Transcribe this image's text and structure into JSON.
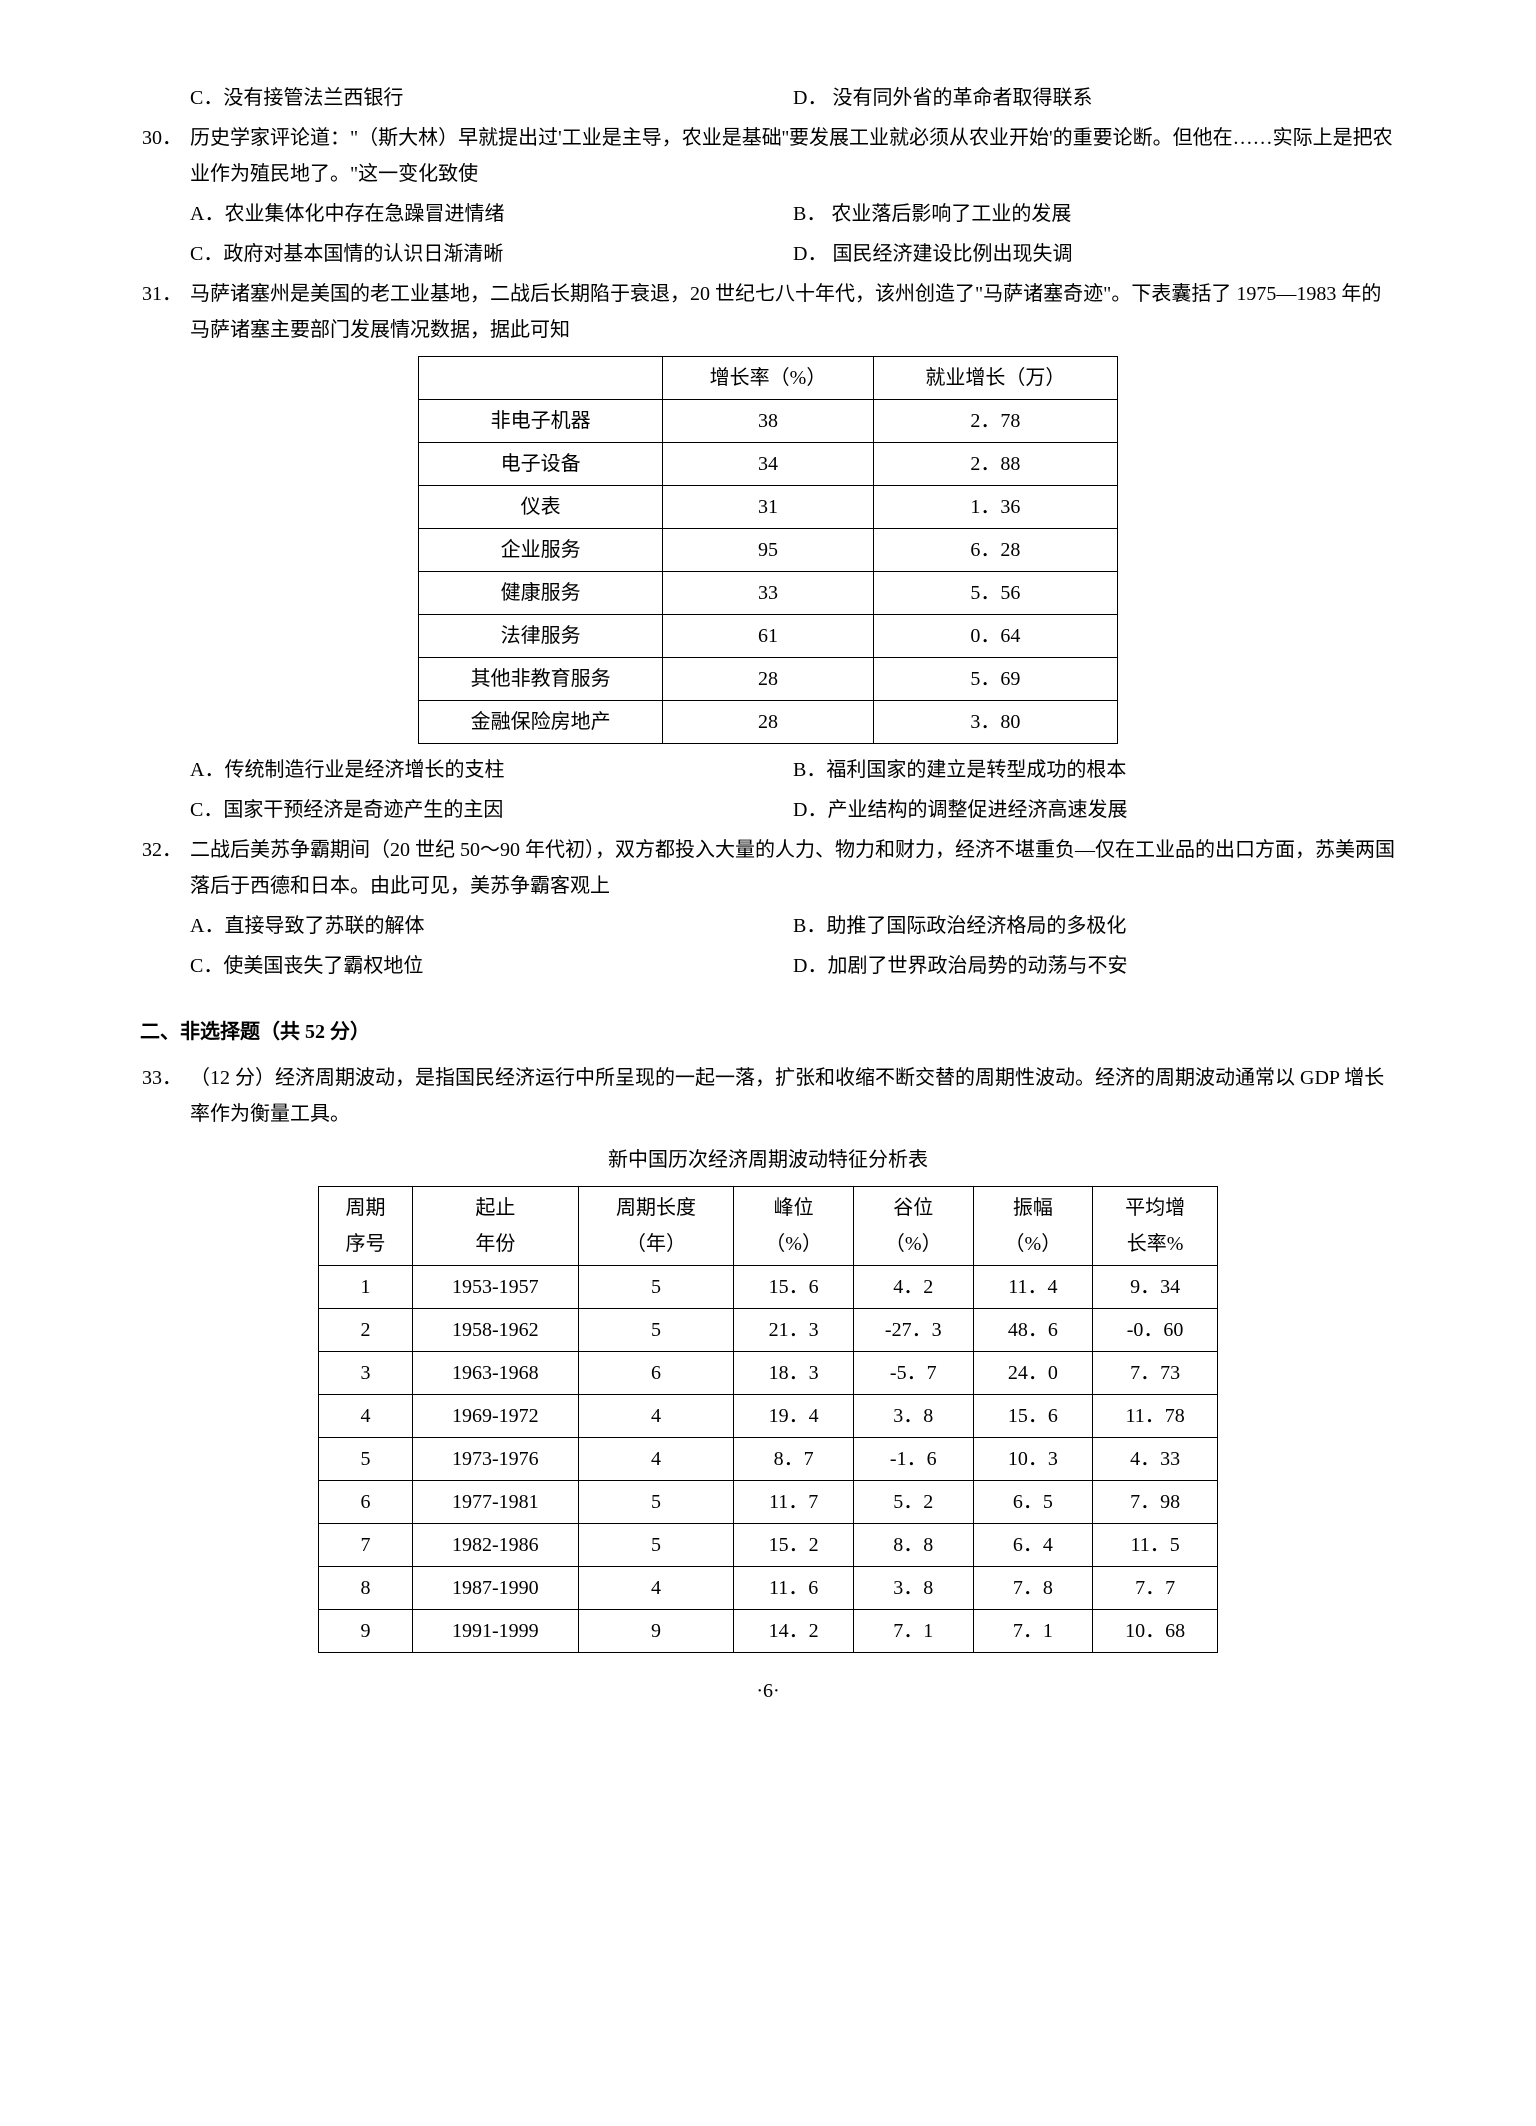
{
  "q29": {
    "optC": "C．没有接管法兰西银行",
    "optD": "D． 没有同外省的革命者取得联系"
  },
  "q30": {
    "num": "30．",
    "text": "历史学家评论道：\"（斯大林）早就提出过'工业是主导，农业是基础''要发展工业就必须从农业开始'的重要论断。但他在……实际上是把农业作为殖民地了。\"这一变化致使",
    "optA": "A．农业集体化中存在急躁冒进情绪",
    "optB": "B． 农业落后影响了工业的发展",
    "optC": "C．政府对基本国情的认识日渐清晰",
    "optD": "D． 国民经济建设比例出现失调"
  },
  "q31": {
    "num": "31．",
    "text": "马萨诸塞州是美国的老工业基地，二战后长期陷于衰退，20 世纪七八十年代，该州创造了\"马萨诸塞奇迹\"。下表囊括了 1975—1983 年的马萨诸塞主要部门发展情况数据，据此可知",
    "table": {
      "headers": [
        "",
        "增长率（%）",
        "就业增长（万）"
      ],
      "rows": [
        [
          "非电子机器",
          "38",
          "2．78"
        ],
        [
          "电子设备",
          "34",
          "2．88"
        ],
        [
          "仪表",
          "31",
          "1．36"
        ],
        [
          "企业服务",
          "95",
          "6．28"
        ],
        [
          "健康服务",
          "33",
          "5．56"
        ],
        [
          "法律服务",
          "61",
          "0．64"
        ],
        [
          "其他非教育服务",
          "28",
          "5．69"
        ],
        [
          "金融保险房地产",
          "28",
          "3．80"
        ]
      ]
    },
    "optA": "A．传统制造行业是经济增长的支柱",
    "optB": "B．福利国家的建立是转型成功的根本",
    "optC": "C．国家干预经济是奇迹产生的主因",
    "optD": "D．产业结构的调整促进经济高速发展"
  },
  "q32": {
    "num": "32．",
    "text": "二战后美苏争霸期间（20 世纪 50～90 年代初），双方都投入大量的人力、物力和财力，经济不堪重负—仅在工业品的出口方面，苏美两国落后于西德和日本。由此可见，美苏争霸客观上",
    "optA": "A．直接导致了苏联的解体",
    "optB": "B．助推了国际政治经济格局的多极化",
    "optC": "C．使美国丧失了霸权地位",
    "optD": "D．加剧了世界政治局势的动荡与不安"
  },
  "section2": {
    "header": "二、非选择题（共 52 分）"
  },
  "q33": {
    "num": "33．",
    "text": "（12 分）经济周期波动，是指国民经济运行中所呈现的一起一落，扩张和收缩不断交替的周期性波动。经济的周期波动通常以 GDP 增长率作为衡量工具。",
    "tableTitle": "新中国历次经济周期波动特征分析表",
    "table": {
      "headers": [
        [
          "周期",
          "序号"
        ],
        [
          "起止",
          "年份"
        ],
        [
          "周期长度",
          "（年）"
        ],
        [
          "峰位",
          "（%）"
        ],
        [
          "谷位",
          "（%）"
        ],
        [
          "振幅",
          "（%）"
        ],
        [
          "平均增",
          "长率%"
        ]
      ],
      "rows": [
        [
          "1",
          "1953-1957",
          "5",
          "15．6",
          "4．2",
          "11．4",
          "9．34"
        ],
        [
          "2",
          "1958-1962",
          "5",
          "21．3",
          "-27．3",
          "48．6",
          "-0．60"
        ],
        [
          "3",
          "1963-1968",
          "6",
          "18．3",
          "-5．7",
          "24．0",
          "7．73"
        ],
        [
          "4",
          "1969-1972",
          "4",
          "19．4",
          "3．8",
          "15．6",
          "11．78"
        ],
        [
          "5",
          "1973-1976",
          "4",
          "8．7",
          "-1．6",
          "10．3",
          "4．33"
        ],
        [
          "6",
          "1977-1981",
          "5",
          "11．7",
          "5．2",
          "6．5",
          "7．98"
        ],
        [
          "7",
          "1982-1986",
          "5",
          "15．2",
          "8．8",
          "6．4",
          "11．5"
        ],
        [
          "8",
          "1987-1990",
          "4",
          "11．6",
          "3．8",
          "7．8",
          "7．7"
        ],
        [
          "9",
          "1991-1999",
          "9",
          "14．2",
          "7．1",
          "7．1",
          "10．68"
        ]
      ]
    }
  },
  "pageNum": "·6·"
}
